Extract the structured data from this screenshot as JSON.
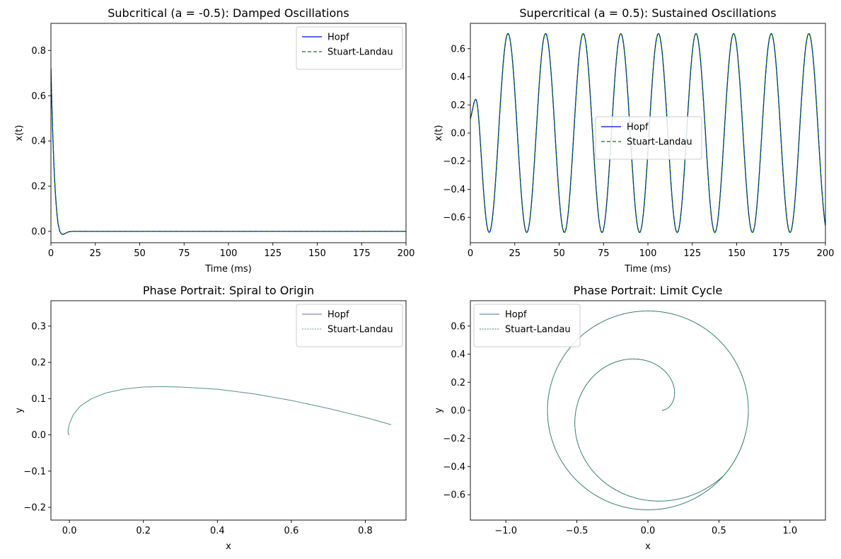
{
  "figure": {
    "background": "#ffffff"
  },
  "chart_data": [
    {
      "type": "line",
      "title": "Subcritical (a = -0.5): Damped Oscillations",
      "xlabel": "Time (ms)",
      "ylabel": "x(t)",
      "xlim": [
        0,
        200
      ],
      "ylim": [
        -0.05,
        0.92
      ],
      "xticks": [
        "0",
        "25",
        "50",
        "75",
        "100",
        "125",
        "150",
        "175",
        "200"
      ],
      "yticks": [
        "0.0",
        "0.2",
        "0.4",
        "0.6",
        "0.8"
      ],
      "xtick_values": [
        0,
        25,
        50,
        75,
        100,
        125,
        150,
        175,
        200
      ],
      "ytick_values": [
        0.0,
        0.2,
        0.4,
        0.6,
        0.8
      ],
      "grid": false,
      "legend": "upper right",
      "series": [
        {
          "name": "Hopf",
          "color": "#0000ff",
          "style": "solid",
          "x": [
            0,
            0.5,
            1,
            1.5,
            2,
            2.5,
            3,
            3.5,
            4,
            5,
            6,
            7,
            8,
            9,
            10,
            12,
            15,
            20,
            30,
            50,
            100,
            150,
            200
          ],
          "y": [
            0.72,
            0.57,
            0.44,
            0.33,
            0.24,
            0.17,
            0.115,
            0.07,
            0.035,
            0.0,
            -0.012,
            -0.013,
            -0.009,
            -0.005,
            -0.002,
            0.0,
            0.0,
            0.0,
            0.0,
            0.0,
            0.0,
            0.0,
            0.0
          ]
        },
        {
          "name": "Stuart-Landau",
          "color": "#008000",
          "style": "dashed",
          "x": [
            0,
            0.5,
            1,
            1.5,
            2,
            2.5,
            3,
            3.5,
            4,
            5,
            6,
            7,
            8,
            9,
            10,
            12,
            15,
            20,
            30,
            50,
            100,
            150,
            200
          ],
          "y": [
            0.72,
            0.57,
            0.44,
            0.33,
            0.24,
            0.17,
            0.115,
            0.07,
            0.035,
            0.0,
            -0.012,
            -0.013,
            -0.009,
            -0.005,
            -0.002,
            0.0,
            0.0,
            0.0,
            0.0,
            0.0,
            0.0,
            0.0,
            0.0
          ]
        }
      ]
    },
    {
      "type": "line",
      "title": "Supercritical (a = 0.5): Sustained Oscillations",
      "xlabel": "Time (ms)",
      "ylabel": "x(t)",
      "xlim": [
        0,
        200
      ],
      "ylim": [
        -0.78,
        0.78
      ],
      "xticks": [
        "0",
        "25",
        "50",
        "75",
        "100",
        "125",
        "150",
        "175",
        "200"
      ],
      "yticks": [
        "−0.6",
        "−0.4",
        "−0.2",
        "0.0",
        "0.2",
        "0.4",
        "0.6"
      ],
      "xtick_values": [
        0,
        25,
        50,
        75,
        100,
        125,
        150,
        175,
        200
      ],
      "ytick_values": [
        -0.6,
        -0.4,
        -0.2,
        0.0,
        0.2,
        0.4,
        0.6
      ],
      "grid": false,
      "legend": "center left",
      "model": {
        "x0": 0.1,
        "a": 0.5,
        "omega": 0.2966,
        "amplitude": 0.7071
      },
      "series": [
        {
          "name": "Hopf",
          "color": "#0000ff",
          "style": "solid"
        },
        {
          "name": "Stuart-Landau",
          "color": "#008000",
          "style": "dashed"
        }
      ]
    },
    {
      "type": "line",
      "title": "Phase Portrait: Spiral to Origin",
      "xlabel": "x",
      "ylabel": "y",
      "xlim": [
        -0.05,
        0.91
      ],
      "ylim": [
        -0.235,
        0.37
      ],
      "xticks": [
        "0.0",
        "0.2",
        "0.4",
        "0.6",
        "0.8"
      ],
      "yticks": [
        "−0.2",
        "−0.1",
        "0.0",
        "0.1",
        "0.2",
        "0.3"
      ],
      "xtick_values": [
        0.0,
        0.2,
        0.4,
        0.6,
        0.8
      ],
      "ytick_values": [
        -0.2,
        -0.1,
        0.0,
        0.1,
        0.2,
        0.3
      ],
      "grid": false,
      "legend": "upper right",
      "series": [
        {
          "name": "Hopf",
          "color": "#6a6aa8",
          "style": "solid",
          "x": [
            0.87,
            0.8,
            0.7,
            0.6,
            0.5,
            0.4,
            0.3,
            0.25,
            0.2,
            0.15,
            0.1,
            0.06,
            0.03,
            0.01,
            0.0,
            -0.004,
            -0.003,
            0.0
          ],
          "y": [
            0.028,
            0.048,
            0.073,
            0.095,
            0.113,
            0.126,
            0.132,
            0.133,
            0.132,
            0.127,
            0.116,
            0.1,
            0.08,
            0.055,
            0.03,
            0.012,
            0.003,
            0.0
          ]
        },
        {
          "name": "Stuart-Landau",
          "color": "#3cb371",
          "style": "dotted",
          "x": [
            0.87,
            0.8,
            0.7,
            0.6,
            0.5,
            0.4,
            0.3,
            0.25,
            0.2,
            0.15,
            0.1,
            0.06,
            0.03,
            0.01,
            0.0,
            -0.004,
            -0.003,
            0.0
          ],
          "y": [
            0.028,
            0.048,
            0.073,
            0.095,
            0.113,
            0.126,
            0.132,
            0.133,
            0.132,
            0.127,
            0.116,
            0.1,
            0.08,
            0.055,
            0.03,
            0.012,
            0.003,
            0.0
          ]
        }
      ]
    },
    {
      "type": "line",
      "title": "Phase Portrait: Limit Cycle",
      "xlabel": "x",
      "ylabel": "y",
      "xlim": [
        -1.25,
        1.25
      ],
      "ylim": [
        -0.78,
        0.78
      ],
      "xticks": [
        "−1.0",
        "−0.5",
        "0.0",
        "0.5",
        "1.0"
      ],
      "yticks": [
        "−0.6",
        "−0.4",
        "−0.2",
        "0.0",
        "0.2",
        "0.4",
        "0.6"
      ],
      "xtick_values": [
        -1.0,
        -0.5,
        0.0,
        0.5,
        1.0
      ],
      "ytick_values": [
        -0.6,
        -0.4,
        -0.2,
        0.0,
        0.2,
        0.4,
        0.6
      ],
      "grid": false,
      "legend": "upper left",
      "model": {
        "x0": 0.1,
        "y0": 0.0,
        "radius": 0.7071
      },
      "series": [
        {
          "name": "Hopf",
          "color": "#4a6f9a",
          "style": "solid"
        },
        {
          "name": "Stuart-Landau",
          "color": "#1f8f4f",
          "style": "dotted"
        }
      ]
    }
  ]
}
